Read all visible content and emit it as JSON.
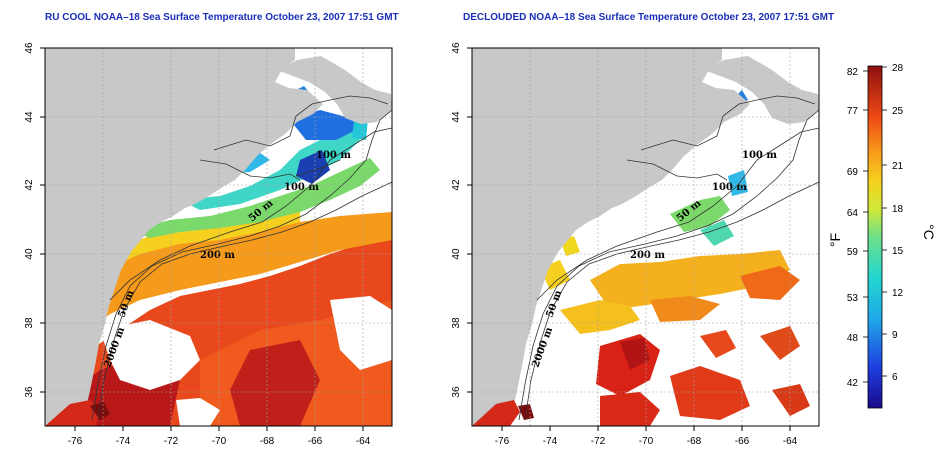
{
  "panels": [
    {
      "title": "RU COOL NOAA–18 Sea Surface Temperature October 23, 2007 17:51 GMT"
    },
    {
      "title": "DECLOUDED NOAA–18 Sea Surface Temperature October 23, 2007 17:51 GMT"
    }
  ],
  "axes": {
    "x_ticks": [
      "-76",
      "-74",
      "-72",
      "-70",
      "-68",
      "-66",
      "-64"
    ],
    "y_ticks": [
      "46",
      "44",
      "42",
      "40",
      "38",
      "36"
    ]
  },
  "contours": {
    "c100a": "100 m",
    "c100b": "100 m",
    "c50": "50 m",
    "c200": "200 m",
    "c50b": "50 m",
    "c2000": "2000 m"
  },
  "colorbar": {
    "f_label": "°F",
    "c_label": "°C",
    "f_ticks": [
      "82",
      "77",
      "69",
      "64",
      "59",
      "53",
      "48",
      "42"
    ],
    "c_ticks": [
      "28",
      "25",
      "21",
      "18",
      "15",
      "12",
      "9",
      "6"
    ]
  },
  "colors": {
    "land": "#c8c8c8",
    "grid": "#a0a0a0",
    "title": "#1a2fb8"
  }
}
